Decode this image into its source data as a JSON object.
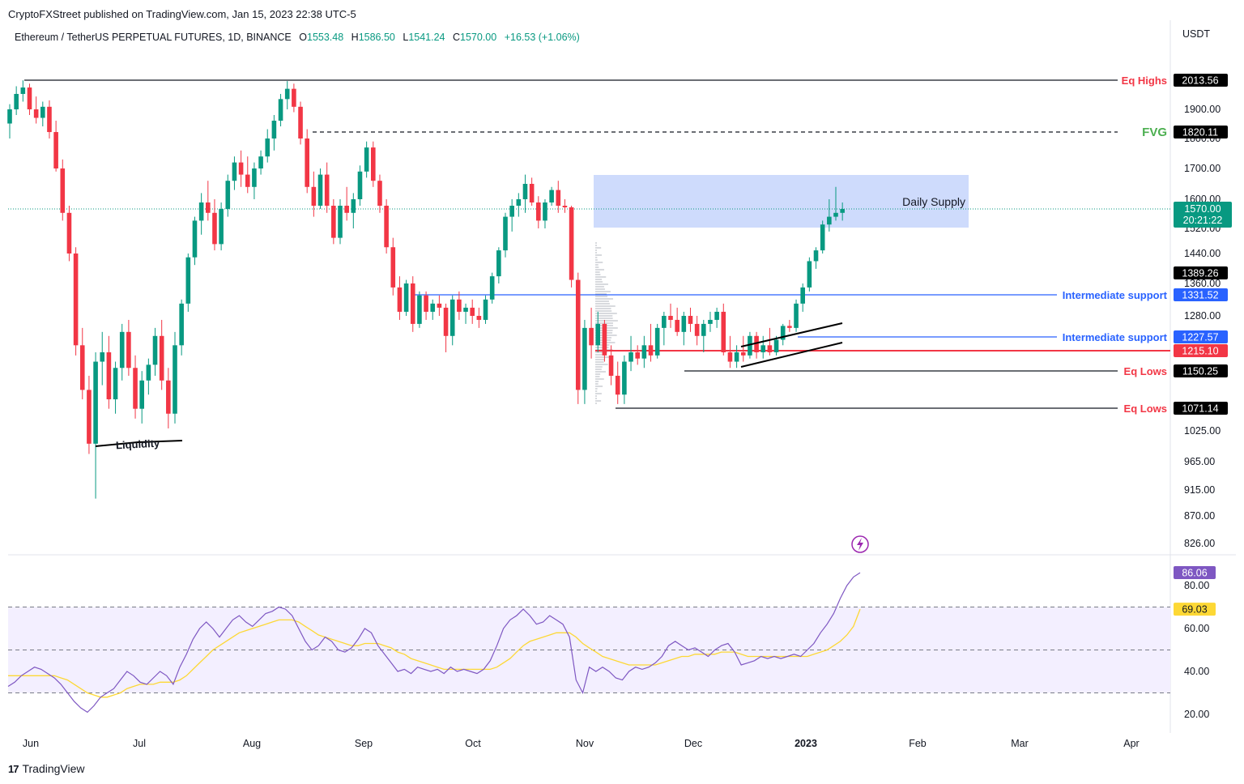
{
  "header": {
    "published": "CryptoFXStreet published on TradingView.com, Jan 15, 2023 22:38 UTC-5",
    "symbol": "Ethereum / TetherUS PERPETUAL FUTURES, 1D, BINANCE",
    "o_label": "O",
    "o_value": "1553.48",
    "h_label": "H",
    "h_value": "1586.50",
    "l_label": "L",
    "l_value": "1541.24",
    "c_label": "C",
    "c_value": "1570.00",
    "change": "+16.53 (+1.06%)",
    "currency": "USDT"
  },
  "footer": {
    "brand": "TradingView",
    "logo": "17"
  },
  "chart_data": [
    {
      "type": "candlestick",
      "title": "Ethereum / TetherUS PERPETUAL FUTURES, 1D, BINANCE",
      "x_ticks": [
        "Jun",
        "Jul",
        "Aug",
        "Sep",
        "Oct",
        "Nov",
        "Dec",
        "2023",
        "Feb",
        "Mar",
        "Apr"
      ],
      "y_ticks": [
        "1900.00",
        "1800.00",
        "1700.00",
        "1600.00",
        "1520.00",
        "1440.00",
        "1360.00",
        "1280.00",
        "1025.00",
        "965.00",
        "915.00",
        "870.00",
        "826.00"
      ],
      "ylim": [
        800,
        2080
      ],
      "last_price": "1570.00",
      "countdown": "20:21:22",
      "colors": {
        "up": "#089981",
        "down": "#f23645",
        "supply_zone": "#c5d5fb"
      },
      "levels": [
        {
          "label": "Eq Highs",
          "value": 2013.56,
          "tag": "2013.56",
          "label_color": "#f23645",
          "style": "solid",
          "color": "#131722"
        },
        {
          "label": "FVG",
          "value": 1820.11,
          "tag": "1820.11",
          "label_color": "#4caf50",
          "style": "dashed",
          "color": "#131722"
        },
        {
          "label": "",
          "value": 1389.26,
          "tag": "1389.26",
          "label_color": "#131722",
          "style": "none",
          "color": "#131722"
        },
        {
          "label": "Intermediate support",
          "value": 1331.52,
          "tag": "1331.52",
          "label_color": "#2962ff",
          "style": "solid",
          "color": "#2962ff"
        },
        {
          "label": "Intermediate support",
          "value": 1227.57,
          "tag": "1227.57",
          "label_color": "#2962ff",
          "style": "solid",
          "color": "#2962ff"
        },
        {
          "label": "",
          "value": 1215.1,
          "tag": "1215.10",
          "label_color": "#f23645",
          "style": "solid",
          "color": "#f23645"
        },
        {
          "label": "Eq Lows",
          "value": 1150.25,
          "tag": "1150.25",
          "label_color": "#f23645",
          "style": "solid",
          "color": "#131722"
        },
        {
          "label": "Eq Lows",
          "value": 1071.14,
          "tag": "1071.14",
          "label_color": "#f23645",
          "style": "solid",
          "color": "#131722"
        }
      ],
      "annotations": {
        "supply_zone": "Daily Supply",
        "liquidity": "Liquidity"
      },
      "candles": [
        [
          1850,
          1920,
          1800,
          1900
        ],
        [
          1900,
          1990,
          1880,
          1960
        ],
        [
          1960,
          2013,
          1930,
          1985
        ],
        [
          1985,
          2000,
          1880,
          1900
        ],
        [
          1900,
          1950,
          1850,
          1870
        ],
        [
          1870,
          1930,
          1840,
          1910
        ],
        [
          1910,
          1935,
          1800,
          1820
        ],
        [
          1820,
          1860,
          1690,
          1700
        ],
        [
          1700,
          1730,
          1540,
          1560
        ],
        [
          1560,
          1580,
          1420,
          1440
        ],
        [
          1440,
          1460,
          1200,
          1220
        ],
        [
          1220,
          1250,
          1090,
          1110
        ],
        [
          1110,
          1140,
          980,
          1000
        ],
        [
          1000,
          1210,
          900,
          1180
        ],
        [
          1180,
          1240,
          1120,
          1210
        ],
        [
          1210,
          1230,
          1070,
          1090
        ],
        [
          1090,
          1180,
          1060,
          1160
        ],
        [
          1160,
          1260,
          1130,
          1240
        ],
        [
          1240,
          1270,
          1140,
          1160
        ],
        [
          1160,
          1200,
          1050,
          1070
        ],
        [
          1070,
          1150,
          1040,
          1130
        ],
        [
          1130,
          1190,
          1100,
          1170
        ],
        [
          1170,
          1250,
          1140,
          1230
        ],
        [
          1230,
          1270,
          1110,
          1130
        ],
        [
          1130,
          1160,
          1030,
          1060
        ],
        [
          1060,
          1240,
          1040,
          1220
        ],
        [
          1220,
          1320,
          1200,
          1310
        ],
        [
          1310,
          1440,
          1290,
          1430
        ],
        [
          1430,
          1550,
          1410,
          1540
        ],
        [
          1540,
          1620,
          1500,
          1590
        ],
        [
          1590,
          1660,
          1540,
          1560
        ],
        [
          1560,
          1600,
          1450,
          1470
        ],
        [
          1470,
          1590,
          1450,
          1570
        ],
        [
          1570,
          1680,
          1550,
          1660
        ],
        [
          1660,
          1740,
          1630,
          1720
        ],
        [
          1720,
          1760,
          1640,
          1680
        ],
        [
          1680,
          1740,
          1620,
          1640
        ],
        [
          1640,
          1720,
          1600,
          1700
        ],
        [
          1700,
          1760,
          1680,
          1740
        ],
        [
          1740,
          1830,
          1720,
          1800
        ],
        [
          1800,
          1880,
          1760,
          1860
        ],
        [
          1860,
          1960,
          1840,
          1940
        ],
        [
          1940,
          2010,
          1900,
          1980
        ],
        [
          1980,
          2000,
          1890,
          1910
        ],
        [
          1910,
          1930,
          1780,
          1800
        ],
        [
          1800,
          1830,
          1620,
          1640
        ],
        [
          1640,
          1690,
          1550,
          1580
        ],
        [
          1580,
          1700,
          1570,
          1680
        ],
        [
          1680,
          1720,
          1560,
          1580
        ],
        [
          1580,
          1600,
          1470,
          1490
        ],
        [
          1490,
          1600,
          1470,
          1580
        ],
        [
          1580,
          1640,
          1540,
          1560
        ],
        [
          1560,
          1620,
          1520,
          1600
        ],
        [
          1600,
          1710,
          1580,
          1690
        ],
        [
          1690,
          1790,
          1670,
          1770
        ],
        [
          1770,
          1790,
          1640,
          1660
        ],
        [
          1660,
          1680,
          1560,
          1580
        ],
        [
          1580,
          1600,
          1440,
          1460
        ],
        [
          1460,
          1490,
          1330,
          1350
        ],
        [
          1350,
          1380,
          1270,
          1290
        ],
        [
          1290,
          1370,
          1280,
          1360
        ],
        [
          1360,
          1380,
          1240,
          1260
        ],
        [
          1260,
          1340,
          1250,
          1330
        ],
        [
          1330,
          1340,
          1270,
          1290
        ],
        [
          1290,
          1320,
          1270,
          1310
        ],
        [
          1310,
          1330,
          1280,
          1300
        ],
        [
          1300,
          1310,
          1210,
          1230
        ],
        [
          1230,
          1330,
          1220,
          1320
        ],
        [
          1320,
          1340,
          1270,
          1290
        ],
        [
          1290,
          1310,
          1260,
          1300
        ],
        [
          1300,
          1320,
          1260,
          1280
        ],
        [
          1280,
          1300,
          1250,
          1270
        ],
        [
          1270,
          1330,
          1260,
          1320
        ],
        [
          1320,
          1390,
          1310,
          1380
        ],
        [
          1380,
          1460,
          1360,
          1450
        ],
        [
          1450,
          1560,
          1430,
          1550
        ],
        [
          1550,
          1600,
          1510,
          1580
        ],
        [
          1580,
          1620,
          1550,
          1600
        ],
        [
          1600,
          1680,
          1560,
          1650
        ],
        [
          1650,
          1670,
          1580,
          1590
        ],
        [
          1590,
          1610,
          1520,
          1540
        ],
        [
          1540,
          1600,
          1520,
          1590
        ],
        [
          1590,
          1640,
          1580,
          1630
        ],
        [
          1630,
          1660,
          1560,
          1580
        ],
        [
          1580,
          1600,
          1560,
          1575
        ],
        [
          1575,
          1580,
          1350,
          1370
        ],
        [
          1370,
          1390,
          1080,
          1110
        ],
        [
          1110,
          1270,
          1080,
          1250
        ],
        [
          1250,
          1300,
          1190,
          1220
        ],
        [
          1220,
          1290,
          1210,
          1260
        ],
        [
          1260,
          1270,
          1180,
          1200
        ],
        [
          1200,
          1220,
          1120,
          1140
        ],
        [
          1140,
          1180,
          1080,
          1100
        ],
        [
          1100,
          1200,
          1080,
          1180
        ],
        [
          1180,
          1230,
          1150,
          1210
        ],
        [
          1210,
          1220,
          1170,
          1190
        ],
        [
          1190,
          1230,
          1160,
          1220
        ],
        [
          1220,
          1260,
          1180,
          1200
        ],
        [
          1200,
          1260,
          1190,
          1250
        ],
        [
          1250,
          1290,
          1220,
          1280
        ],
        [
          1280,
          1310,
          1250,
          1270
        ],
        [
          1270,
          1300,
          1230,
          1240
        ],
        [
          1240,
          1290,
          1220,
          1280
        ],
        [
          1280,
          1300,
          1240,
          1260
        ],
        [
          1260,
          1280,
          1220,
          1230
        ],
        [
          1230,
          1270,
          1210,
          1260
        ],
        [
          1260,
          1290,
          1240,
          1270
        ],
        [
          1270,
          1300,
          1250,
          1290
        ],
        [
          1290,
          1310,
          1200,
          1210
        ],
        [
          1210,
          1230,
          1160,
          1180
        ],
        [
          1180,
          1220,
          1160,
          1210
        ],
        [
          1210,
          1230,
          1180,
          1200
        ],
        [
          1200,
          1240,
          1190,
          1230
        ],
        [
          1230,
          1240,
          1190,
          1210
        ],
        [
          1210,
          1230,
          1190,
          1220
        ],
        [
          1220,
          1250,
          1200,
          1210
        ],
        [
          1210,
          1230,
          1200,
          1225
        ],
        [
          1225,
          1260,
          1220,
          1255
        ],
        [
          1255,
          1270,
          1240,
          1250
        ],
        [
          1250,
          1320,
          1240,
          1310
        ],
        [
          1310,
          1360,
          1290,
          1350
        ],
        [
          1350,
          1430,
          1340,
          1420
        ],
        [
          1420,
          1460,
          1400,
          1450
        ],
        [
          1450,
          1540,
          1440,
          1530
        ],
        [
          1530,
          1600,
          1510,
          1550
        ],
        [
          1550,
          1640,
          1540,
          1560
        ],
        [
          1560,
          1590,
          1540,
          1570
        ]
      ],
      "rsi": {
        "levels": [
          70,
          50,
          30
        ],
        "y_ticks": [
          "80.00",
          "60.00",
          "40.00",
          "20.00"
        ],
        "ylim": [
          15,
          95
        ],
        "current": "86.06",
        "signal_current": "69.03",
        "colors": {
          "rsi": "#7e57c2",
          "signal": "#fdd835",
          "band": "#f3efff"
        },
        "rsi_values": [
          33,
          35,
          38,
          40,
          42,
          41,
          39,
          37,
          34,
          30,
          26,
          23,
          21,
          24,
          28,
          30,
          32,
          36,
          40,
          38,
          35,
          34,
          37,
          40,
          38,
          34,
          42,
          48,
          55,
          60,
          63,
          60,
          56,
          60,
          64,
          66,
          63,
          61,
          64,
          67,
          68,
          70,
          69,
          66,
          60,
          54,
          50,
          52,
          56,
          54,
          50,
          49,
          51,
          55,
          60,
          58,
          52,
          48,
          44,
          40,
          41,
          39,
          42,
          41,
          40,
          41,
          39,
          42,
          40,
          41,
          40,
          39,
          41,
          45,
          52,
          60,
          64,
          66,
          69,
          66,
          62,
          63,
          66,
          64,
          62,
          56,
          36,
          30,
          42,
          40,
          42,
          40,
          37,
          36,
          40,
          42,
          41,
          42,
          44,
          47,
          52,
          54,
          52,
          50,
          51,
          49,
          47,
          50,
          52,
          53,
          49,
          43,
          44,
          45,
          47,
          46,
          47,
          46,
          47,
          48,
          47,
          50,
          53,
          58,
          62,
          67,
          74,
          80,
          84,
          86
        ],
        "signal_values": [
          38,
          38,
          38,
          38,
          38,
          38,
          38,
          38,
          37,
          36,
          34,
          32,
          30,
          29,
          28,
          28,
          29,
          30,
          32,
          33,
          34,
          34,
          34,
          35,
          35,
          35,
          36,
          38,
          41,
          44,
          47,
          50,
          52,
          54,
          56,
          58,
          59,
          60,
          61,
          62,
          63,
          64,
          64,
          64,
          63,
          61,
          59,
          57,
          56,
          55,
          54,
          53,
          52,
          52,
          53,
          53,
          53,
          52,
          51,
          49,
          48,
          46,
          45,
          44,
          43,
          42,
          41,
          41,
          41,
          41,
          41,
          41,
          41,
          41,
          42,
          44,
          46,
          49,
          52,
          54,
          55,
          56,
          57,
          58,
          58,
          58,
          56,
          53,
          51,
          49,
          47,
          46,
          45,
          44,
          43,
          43,
          43,
          43,
          43,
          44,
          45,
          46,
          47,
          47,
          48,
          48,
          48,
          48,
          49,
          49,
          49,
          48,
          47,
          47,
          47,
          47,
          47,
          47,
          47,
          47,
          47,
          47,
          48,
          49,
          50,
          52,
          54,
          57,
          61,
          69
        ]
      },
      "volume_profile": true
    }
  ]
}
